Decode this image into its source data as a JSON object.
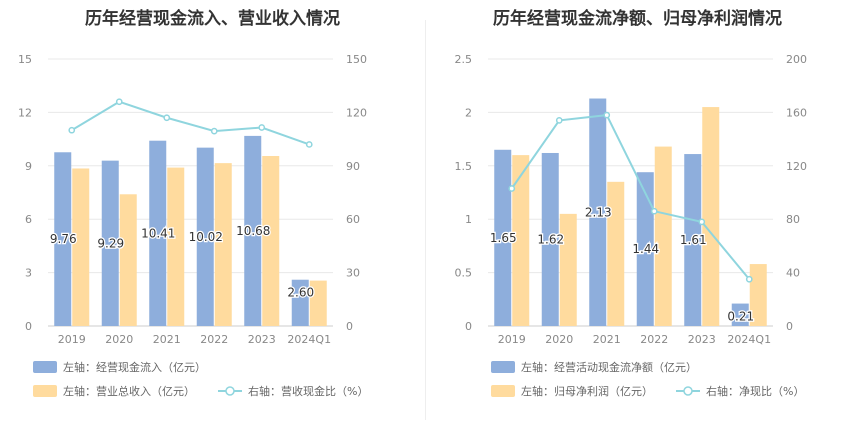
{
  "colors": {
    "bar1": "#8eaedc",
    "bar2": "#ffdb9e",
    "line": "#8fd5de",
    "grid": "#e8e8e8",
    "tick": "#888888",
    "label": "#333333"
  },
  "chart_data": [
    {
      "type": "bar",
      "title": "历年经营现金流入、营业收入情况",
      "categories": [
        "2019",
        "2020",
        "2021",
        "2022",
        "2023",
        "2024Q1"
      ],
      "left_axis": {
        "min": 0,
        "max": 15,
        "ticks": [
          "0",
          "3",
          "6",
          "9",
          "12",
          "15"
        ]
      },
      "right_axis": {
        "min": 0,
        "max": 150,
        "ticks": [
          "0",
          "30",
          "60",
          "90",
          "120",
          "150"
        ]
      },
      "series": [
        {
          "name": "左轴：经营现金流入（亿元）",
          "kind": "bar",
          "axis": "left",
          "values": [
            9.76,
            9.29,
            10.41,
            10.02,
            10.68,
            2.6
          ],
          "labels": [
            "9.76",
            "9.29",
            "10.41",
            "10.02",
            "10.68",
            "2.60"
          ]
        },
        {
          "name": "左轴：营业总收入（亿元）",
          "kind": "bar",
          "axis": "left",
          "values": [
            8.85,
            7.4,
            8.9,
            9.15,
            9.55,
            2.55
          ]
        },
        {
          "name": "右轴：营收现金比（%）",
          "kind": "line",
          "axis": "right",
          "values": [
            110,
            126,
            117,
            109.5,
            111.5,
            102
          ]
        }
      ],
      "grid": true,
      "legend": "bottom"
    },
    {
      "type": "bar",
      "title": "历年经营现金流净额、归母净利润情况",
      "categories": [
        "2019",
        "2020",
        "2021",
        "2022",
        "2023",
        "2024Q1"
      ],
      "left_axis": {
        "min": 0,
        "max": 2.5,
        "ticks": [
          "0",
          "0.5",
          "1",
          "1.5",
          "2",
          "2.5"
        ]
      },
      "right_axis": {
        "min": 0,
        "max": 200,
        "ticks": [
          "0",
          "40",
          "80",
          "120",
          "160",
          "200"
        ]
      },
      "series": [
        {
          "name": "左轴：经营活动现金流净额（亿元）",
          "kind": "bar",
          "axis": "left",
          "values": [
            1.65,
            1.62,
            2.13,
            1.44,
            1.61,
            0.21
          ],
          "labels": [
            "1.65",
            "1.62",
            "2.13",
            "1.44",
            "1.61",
            "0.21"
          ]
        },
        {
          "name": "左轴：归母净利润（亿元）",
          "kind": "bar",
          "axis": "left",
          "values": [
            1.6,
            1.05,
            1.35,
            1.68,
            2.05,
            0.58
          ]
        },
        {
          "name": "右轴：净现比（%）",
          "kind": "line",
          "axis": "right",
          "values": [
            103,
            154,
            158,
            86,
            78,
            35
          ]
        }
      ],
      "grid": true,
      "legend": "bottom"
    }
  ]
}
